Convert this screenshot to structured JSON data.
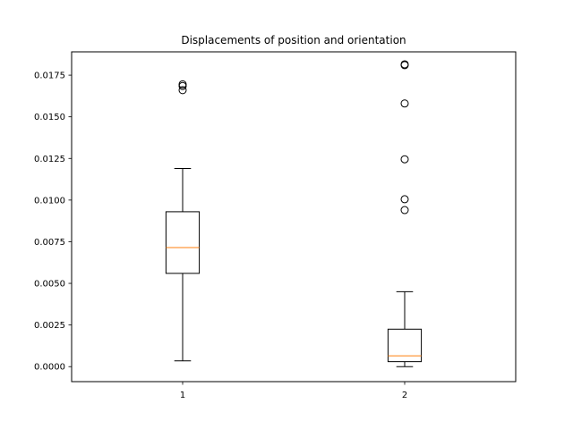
{
  "chart_data": {
    "type": "boxplot",
    "title": "Displacements of position and orientation",
    "xlabel": "",
    "ylabel": "",
    "categories": [
      "1",
      "2"
    ],
    "ylim": [
      -0.0009,
      0.0189
    ],
    "yticks": [
      "0.0000",
      "0.0025",
      "0.0050",
      "0.0075",
      "0.0100",
      "0.0125",
      "0.0150",
      "0.0175"
    ],
    "ytick_values": [
      0.0,
      0.0025,
      0.005,
      0.0075,
      0.01,
      0.0125,
      0.015,
      0.0175
    ],
    "grid": false,
    "boxes": [
      {
        "label": "1",
        "whisker_low": 0.00035,
        "q1": 0.0056,
        "median": 0.00715,
        "q3": 0.0093,
        "whisker_high": 0.0119,
        "outliers": [
          0.0166,
          0.01685,
          0.01695
        ]
      },
      {
        "label": "2",
        "whisker_low": 0.0,
        "q1": 0.0003,
        "median": 0.00065,
        "q3": 0.00225,
        "whisker_high": 0.0045,
        "outliers": [
          0.0094,
          0.01005,
          0.01245,
          0.0158,
          0.0181,
          0.01815
        ]
      }
    ],
    "colors": {
      "box": "#000000",
      "median": "#ff7f0e",
      "outlier_edge": "#000000"
    }
  }
}
